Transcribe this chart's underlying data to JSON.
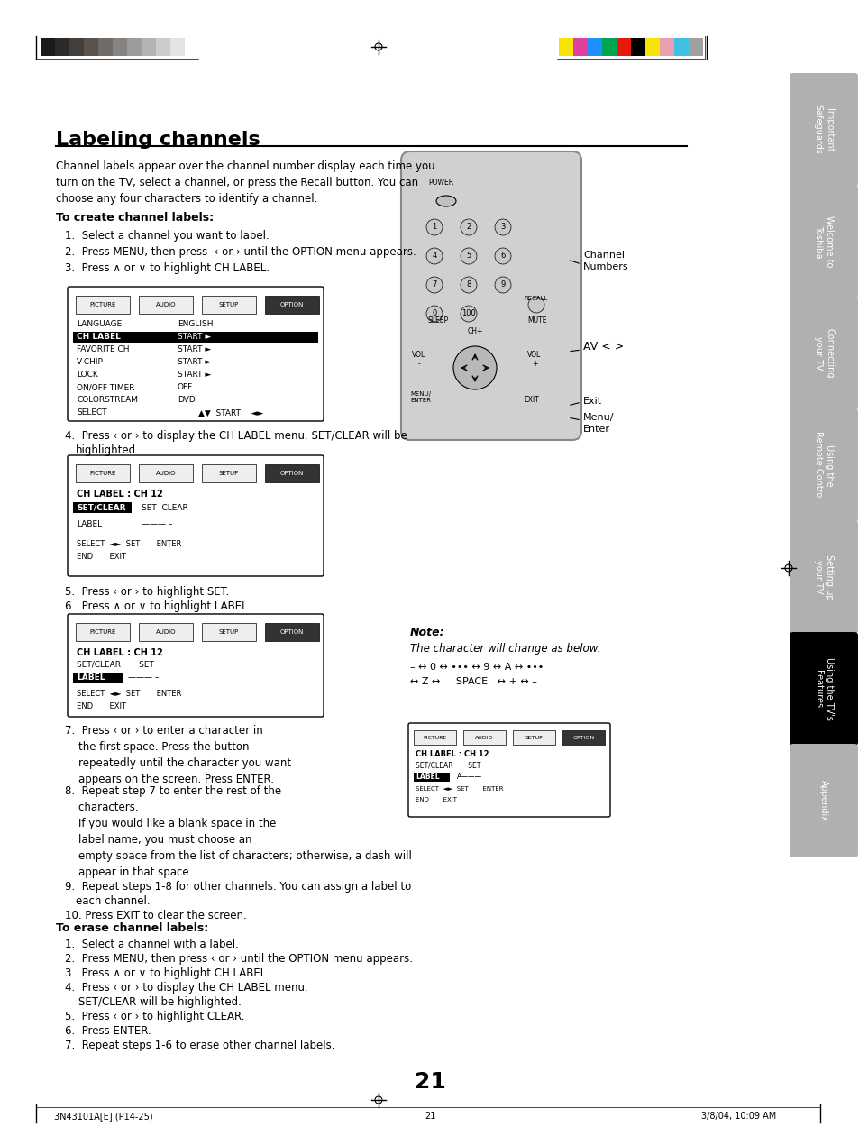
{
  "page_bg": "#ffffff",
  "title": "Labeling channels",
  "tab_labels": [
    "Important\nSafeguards",
    "Welcome to\nToshiba",
    "Connecting\nyour TV",
    "Using the\nRemote Control",
    "Setting up\nyour TV",
    "Using the TV's\nFeatures",
    "Appendix"
  ],
  "tab_active": 5,
  "tab_colors": [
    "#b0b0b0",
    "#b0b0b0",
    "#b0b0b0",
    "#b0b0b0",
    "#b0b0b0",
    "#000000",
    "#b0b0b0"
  ],
  "page_number": "21",
  "footer_left": "3N43101A[E] (P14-25)",
  "footer_center": "21",
  "footer_right": "3/8/04, 10:09 AM"
}
